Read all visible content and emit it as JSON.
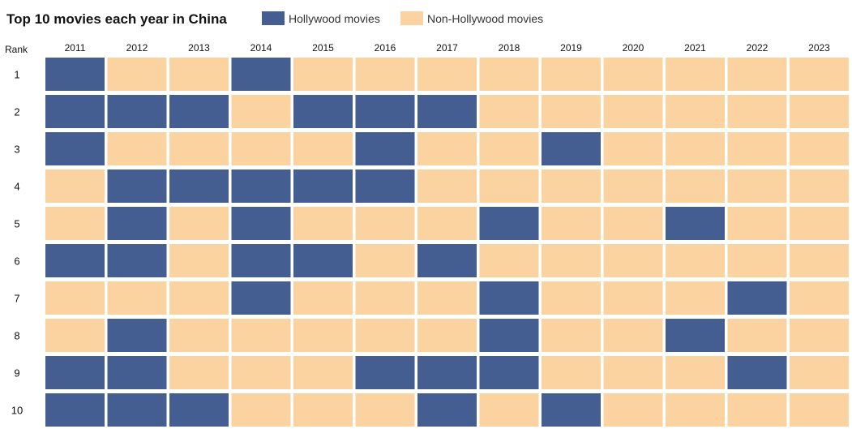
{
  "chart_data": {
    "type": "heatmap",
    "title": "Top 10 movies each year in China",
    "legend": [
      {
        "label": "Hollywood movies",
        "color": "#445e91"
      },
      {
        "label": "Non-Hollywood movies",
        "color": "#fad3a1"
      }
    ],
    "legend_position": "top",
    "row_axis_label": "Rank",
    "years": [
      "2011",
      "2012",
      "2013",
      "2014",
      "2015",
      "2016",
      "2017",
      "2018",
      "2019",
      "2020",
      "2021",
      "2022",
      "2023"
    ],
    "ranks": [
      "1",
      "2",
      "3",
      "4",
      "5",
      "6",
      "7",
      "8",
      "9",
      "10"
    ],
    "hollywood": [
      [
        1,
        0,
        0,
        1,
        0,
        0,
        0,
        0,
        0,
        0,
        0,
        0,
        0
      ],
      [
        1,
        1,
        1,
        0,
        1,
        1,
        1,
        0,
        0,
        0,
        0,
        0,
        0
      ],
      [
        1,
        0,
        0,
        0,
        0,
        1,
        0,
        0,
        1,
        0,
        0,
        0,
        0
      ],
      [
        0,
        1,
        1,
        1,
        1,
        1,
        0,
        0,
        0,
        0,
        0,
        0,
        0
      ],
      [
        0,
        1,
        0,
        1,
        0,
        0,
        0,
        1,
        0,
        0,
        1,
        0,
        0
      ],
      [
        1,
        1,
        0,
        1,
        1,
        0,
        1,
        0,
        0,
        0,
        0,
        0,
        0
      ],
      [
        0,
        0,
        0,
        1,
        0,
        0,
        0,
        1,
        0,
        0,
        0,
        1,
        0
      ],
      [
        0,
        1,
        0,
        0,
        0,
        0,
        0,
        1,
        0,
        0,
        1,
        0,
        0
      ],
      [
        1,
        1,
        0,
        0,
        0,
        1,
        1,
        1,
        0,
        0,
        0,
        1,
        0
      ],
      [
        1,
        1,
        1,
        0,
        0,
        0,
        1,
        0,
        1,
        0,
        0,
        0,
        0
      ]
    ]
  }
}
